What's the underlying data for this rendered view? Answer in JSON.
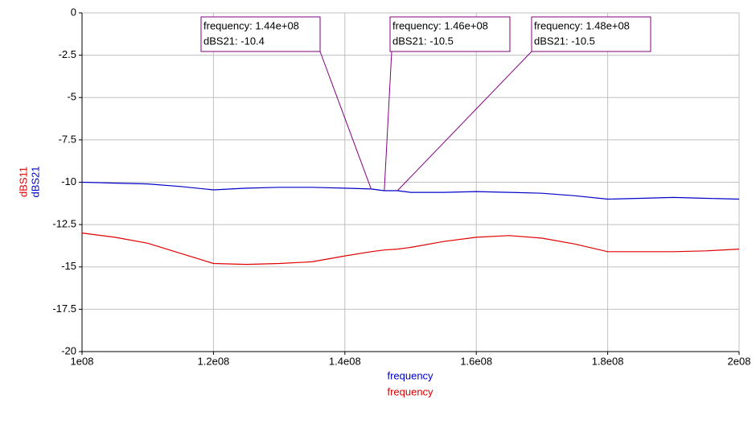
{
  "chart_data": {
    "type": "line",
    "x": [
      100000000,
      105000000,
      110000000,
      115000000,
      120000000,
      125000000,
      130000000,
      135000000,
      140000000,
      144000000,
      146000000,
      148000000,
      150000000,
      155000000,
      160000000,
      165000000,
      170000000,
      175000000,
      180000000,
      185000000,
      190000000,
      195000000,
      200000000
    ],
    "series": [
      {
        "name": "dBS21",
        "color": "#0000c8",
        "xlabel": "frequency",
        "values": [
          -10.0,
          -10.05,
          -10.1,
          -10.25,
          -10.45,
          -10.35,
          -10.3,
          -10.3,
          -10.35,
          -10.4,
          -10.5,
          -10.5,
          -10.6,
          -10.6,
          -10.55,
          -10.6,
          -10.65,
          -10.8,
          -11.0,
          -10.95,
          -10.9,
          -10.95,
          -11.0
        ]
      },
      {
        "name": "dBS11",
        "color": "#e00000",
        "xlabel": "frequency",
        "values": [
          -13.0,
          -13.25,
          -13.6,
          -14.2,
          -14.8,
          -14.85,
          -14.8,
          -14.7,
          -14.35,
          -14.1,
          -14.0,
          -13.95,
          -13.85,
          -13.5,
          -13.25,
          -13.15,
          -13.3,
          -13.65,
          -14.1,
          -14.1,
          -14.1,
          -14.05,
          -13.95
        ]
      }
    ],
    "xlim": [
      100000000,
      200000000
    ],
    "xticks": [
      {
        "value": 100000000,
        "label": "1e08"
      },
      {
        "value": 120000000,
        "label": "1.2e08"
      },
      {
        "value": 140000000,
        "label": "1.4e08"
      },
      {
        "value": 160000000,
        "label": "1.6e08"
      },
      {
        "value": 180000000,
        "label": "1.8e08"
      },
      {
        "value": 200000000,
        "label": "2e08"
      }
    ],
    "ylim": [
      -20,
      0
    ],
    "yticks": [
      0,
      -2.5,
      -5,
      -7.5,
      -10,
      -12.5,
      -15,
      -17.5,
      -20
    ],
    "grid": true,
    "annotations": [
      {
        "x": 144000000,
        "y": -10.4,
        "lines": [
          "frequency: 1.44e+08",
          "dBS21: -10.4"
        ]
      },
      {
        "x": 146000000,
        "y": -10.5,
        "lines": [
          "frequency: 1.46e+08",
          "dBS21: -10.5"
        ]
      },
      {
        "x": 148000000,
        "y": -10.5,
        "lines": [
          "frequency: 1.48e+08",
          "dBS21: -10.5"
        ]
      }
    ]
  }
}
